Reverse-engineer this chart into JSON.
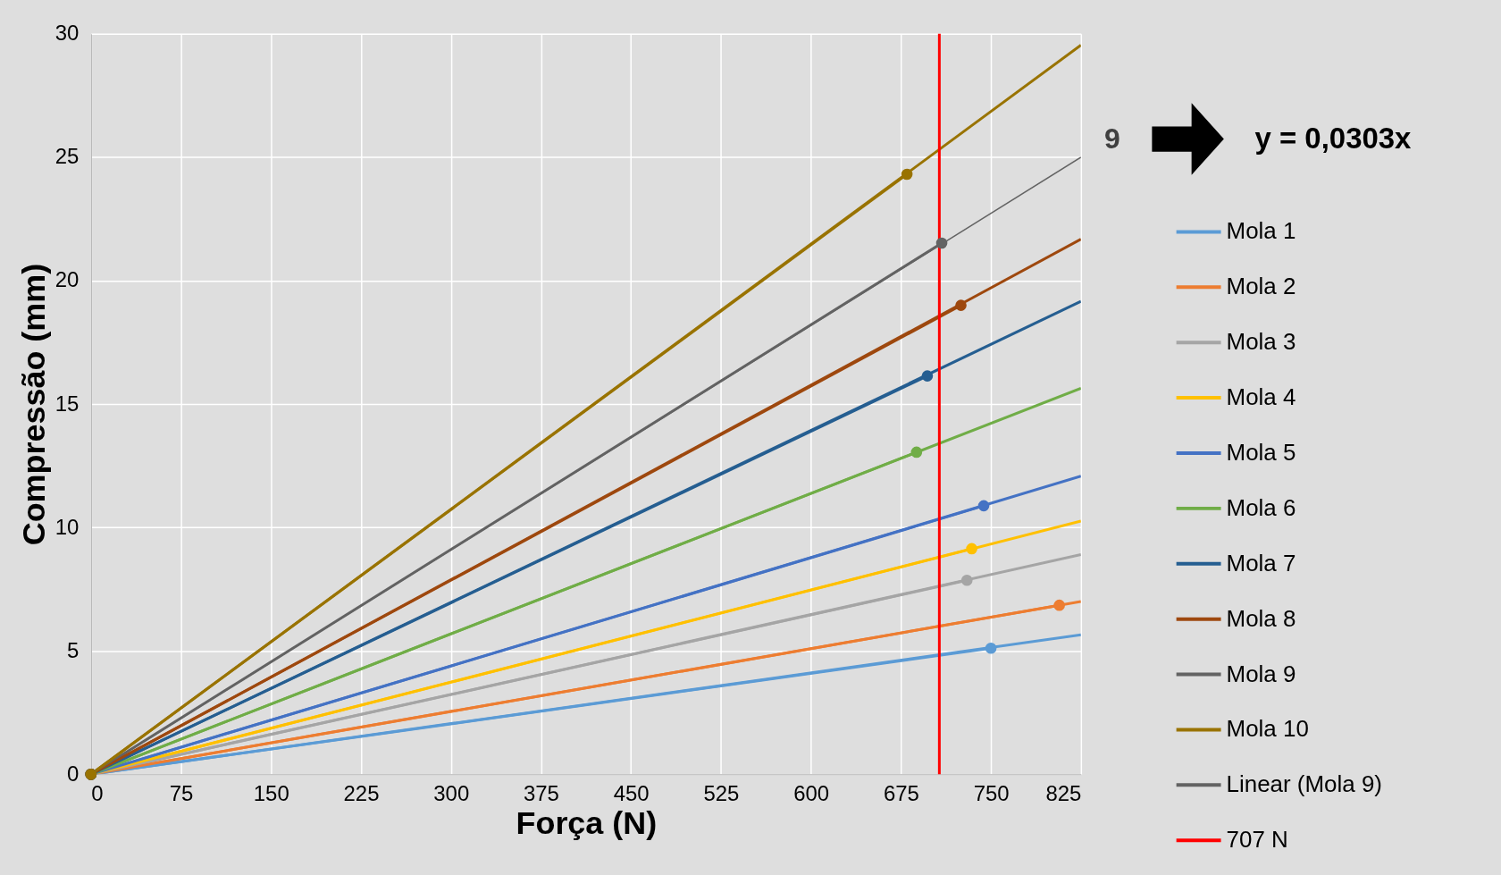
{
  "chart_data": {
    "type": "line",
    "xlabel": "Força (N)",
    "ylabel": "Compressão (mm)",
    "xlim": [
      0,
      825
    ],
    "xticks": [
      0,
      75,
      150,
      225,
      300,
      375,
      450,
      525,
      600,
      675,
      750,
      825
    ],
    "ylim": [
      0,
      30
    ],
    "yticks": [
      0,
      5,
      10,
      15,
      20,
      25,
      30
    ],
    "grid": true,
    "legend": "right",
    "marker": "circle",
    "series": [
      {
        "name": "Mola 1",
        "color": "#5b9bd5",
        "x": [
          0,
          750
        ],
        "values": [
          0,
          5.11
        ]
      },
      {
        "name": "Mola 2",
        "color": "#ed7d31",
        "x": [
          0,
          807
        ],
        "values": [
          0,
          6.85
        ]
      },
      {
        "name": "Mola 3",
        "color": "#a5a5a5",
        "x": [
          0,
          730
        ],
        "values": [
          0,
          7.86
        ]
      },
      {
        "name": "Mola 4",
        "color": "#ffc000",
        "x": [
          0,
          734
        ],
        "values": [
          0,
          9.14
        ]
      },
      {
        "name": "Mola 5",
        "color": "#4472c4",
        "x": [
          0,
          744
        ],
        "values": [
          0,
          10.88
        ]
      },
      {
        "name": "Mola 6",
        "color": "#70ad47",
        "x": [
          0,
          688
        ],
        "values": [
          0,
          13.05
        ]
      },
      {
        "name": "Mola 7",
        "color": "#255e91",
        "x": [
          0,
          697
        ],
        "values": [
          0,
          16.14
        ]
      },
      {
        "name": "Mola 8",
        "color": "#9e480e",
        "x": [
          0,
          725
        ],
        "values": [
          0,
          19.0
        ]
      },
      {
        "name": "Mola 9",
        "color": "#636363",
        "x": [
          0,
          709
        ],
        "values": [
          0,
          21.52
        ]
      },
      {
        "name": "Mola 10",
        "color": "#997300",
        "x": [
          0,
          680
        ],
        "values": [
          0,
          24.31
        ]
      },
      {
        "type": "line",
        "marker": "none",
        "color": "#5b9bd5",
        "x": [
          0,
          825
        ],
        "values": [
          0,
          5.65
        ]
      },
      {
        "type": "line",
        "marker": "none",
        "color": "#ed7d31",
        "x": [
          0,
          825
        ],
        "values": [
          0,
          7.0
        ]
      },
      {
        "type": "line",
        "marker": "none",
        "color": "#a5a5a5",
        "x": [
          0,
          825
        ],
        "values": [
          0,
          8.9
        ]
      },
      {
        "type": "line",
        "marker": "none",
        "color": "#ffc000",
        "x": [
          0,
          825
        ],
        "values": [
          0,
          10.26
        ]
      },
      {
        "type": "line",
        "marker": "none",
        "color": "#4472c4",
        "x": [
          0,
          825
        ],
        "values": [
          0,
          12.08
        ]
      },
      {
        "type": "line",
        "marker": "none",
        "color": "#70ad47",
        "x": [
          0,
          825
        ],
        "values": [
          0,
          15.64
        ]
      },
      {
        "type": "line",
        "marker": "none",
        "color": "#255e91",
        "x": [
          0,
          825
        ],
        "values": [
          0,
          19.16
        ]
      },
      {
        "type": "line",
        "marker": "none",
        "color": "#9e480e",
        "x": [
          0,
          825
        ],
        "values": [
          0,
          21.68
        ]
      },
      {
        "name": "Linear (Mola 9)",
        "type": "line",
        "marker": "none",
        "color": "#636363",
        "x": [
          0,
          825
        ],
        "values": [
          0,
          25.0
        ]
      },
      {
        "type": "line",
        "marker": "none",
        "color": "#997300",
        "x": [
          0,
          825
        ],
        "values": [
          0,
          29.54
        ]
      }
    ],
    "ref_lines": [
      {
        "axis": "x",
        "value": 707,
        "label": "707 N",
        "color": "#ff0000"
      }
    ],
    "annotations": [
      "9",
      "y = 0,0303x"
    ]
  }
}
